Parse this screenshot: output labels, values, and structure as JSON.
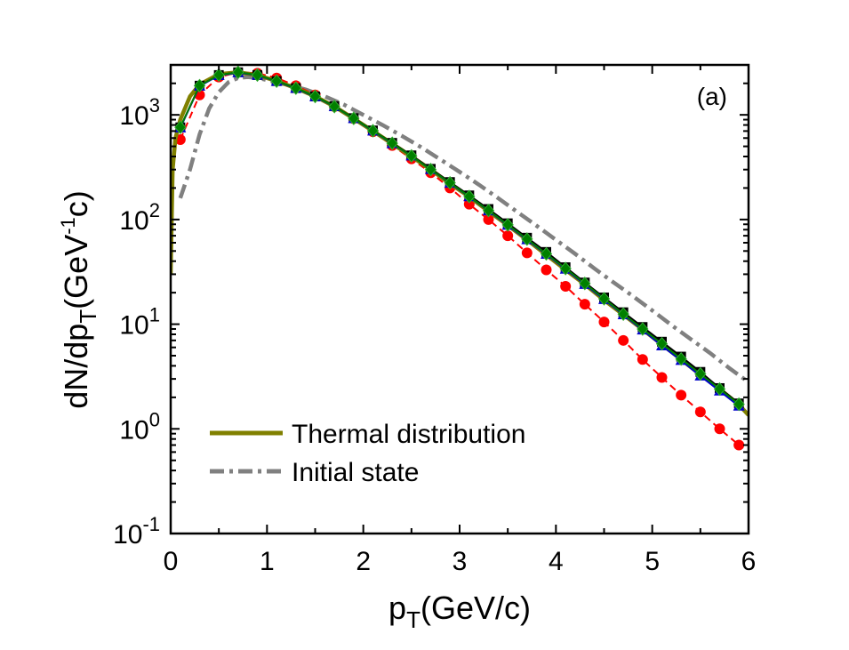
{
  "chart_data": {
    "type": "line",
    "panel_label": "(a)",
    "xlabel_main": "p",
    "xlabel_sub": "T",
    "xlabel_rest": "(GeV/c)",
    "ylabel_a": "dN/dp",
    "ylabel_sub": "T",
    "ylabel_b": "(GeV",
    "ylabel_sup": "-1",
    "ylabel_c": "c)",
    "xlim": [
      0,
      6
    ],
    "ylim": [
      0.1,
      3000
    ],
    "yscale": "log",
    "x_ticks": [
      "0",
      "1",
      "2",
      "3",
      "4",
      "5",
      "6"
    ],
    "y_ticks": [
      {
        "base": "10",
        "exp": "-1",
        "value": 0.1
      },
      {
        "base": "10",
        "exp": "0",
        "value": 1
      },
      {
        "base": "10",
        "exp": "1",
        "value": 10
      },
      {
        "base": "10",
        "exp": "2",
        "value": 100
      },
      {
        "base": "10",
        "exp": "3",
        "value": 1000
      }
    ],
    "legend_position": "bottom-left",
    "series": [
      {
        "name": "Thermal distribution",
        "style": "solid",
        "color": "#808000",
        "x": [
          0.0,
          0.02,
          0.05,
          0.1,
          0.2,
          0.3,
          0.5,
          0.7,
          0.9,
          1.1,
          1.3,
          1.5,
          1.7,
          1.9,
          2.1,
          2.3,
          2.5,
          2.7,
          2.9,
          3.1,
          3.3,
          3.5,
          3.7,
          3.9,
          4.1,
          4.3,
          4.5,
          4.7,
          4.9,
          5.1,
          5.3,
          5.5,
          5.7,
          5.9,
          6.0
        ],
        "y": [
          30,
          300,
          600,
          900,
          1500,
          1950,
          2450,
          2550,
          2400,
          2100,
          1800,
          1500,
          1200,
          920,
          700,
          530,
          400,
          300,
          220,
          165,
          120,
          88,
          64,
          46,
          33,
          24,
          17,
          12.3,
          8.9,
          6.4,
          4.6,
          3.3,
          2.4,
          1.7,
          1.35
        ]
      },
      {
        "name": "Initial state",
        "style": "dashdot",
        "color": "#808080",
        "x": [
          0.1,
          0.2,
          0.3,
          0.4,
          0.5,
          0.6,
          0.7,
          0.8,
          0.9,
          1.0,
          1.2,
          1.4,
          1.6,
          1.8,
          2.0,
          2.2,
          2.4,
          2.6,
          2.8,
          3.0,
          3.2,
          3.4,
          3.6,
          3.8,
          4.0,
          4.2,
          4.4,
          4.6,
          4.8,
          5.0,
          5.2,
          5.4,
          5.6,
          5.8,
          6.0
        ],
        "y": [
          160,
          300,
          650,
          1150,
          1650,
          2050,
          2250,
          2300,
          2250,
          2150,
          1950,
          1750,
          1500,
          1250,
          1000,
          800,
          630,
          490,
          375,
          285,
          215,
          160,
          118,
          87,
          64,
          47,
          34,
          25,
          18.5,
          13.5,
          9.8,
          7.2,
          5.3,
          3.8,
          2.8
        ]
      },
      {
        "style": "dashed-markers",
        "marker": "circle",
        "color": "#ff0000",
        "x": [
          0.1,
          0.3,
          0.5,
          0.7,
          0.9,
          1.1,
          1.3,
          1.5,
          1.7,
          1.9,
          2.1,
          2.3,
          2.5,
          2.7,
          2.9,
          3.1,
          3.3,
          3.5,
          3.7,
          3.9,
          4.1,
          4.3,
          4.5,
          4.7,
          4.9,
          5.1,
          5.3,
          5.5,
          5.7,
          5.9
        ],
        "y": [
          580,
          1550,
          2300,
          2550,
          2500,
          2250,
          1900,
          1550,
          1200,
          920,
          690,
          510,
          380,
          280,
          200,
          140,
          100,
          70,
          48,
          33,
          23,
          15.5,
          10.5,
          7.0,
          4.6,
          3.1,
          2.1,
          1.45,
          1.0,
          0.7
        ]
      },
      {
        "style": "solid-markers",
        "marker": "square",
        "color": "#000000",
        "x": [
          0.1,
          0.3,
          0.5,
          0.7,
          0.9,
          1.1,
          1.3,
          1.5,
          1.7,
          1.9,
          2.1,
          2.3,
          2.5,
          2.7,
          2.9,
          3.1,
          3.3,
          3.5,
          3.7,
          3.9,
          4.1,
          4.3,
          4.5,
          4.7,
          4.9,
          5.1,
          5.3,
          5.5,
          5.7,
          5.9
        ],
        "y": [
          760,
          1900,
          2400,
          2550,
          2400,
          2100,
          1800,
          1500,
          1210,
          930,
          710,
          540,
          410,
          305,
          228,
          170,
          126,
          92,
          67,
          49,
          35,
          25,
          18,
          13,
          9.4,
          6.8,
          4.9,
          3.5,
          2.45,
          1.75
        ]
      },
      {
        "style": "solid-markers",
        "marker": "triangle",
        "color": "#0000cc",
        "x": [
          0.1,
          0.3,
          0.5,
          0.7,
          0.9,
          1.1,
          1.3,
          1.5,
          1.7,
          1.9,
          2.1,
          2.3,
          2.5,
          2.7,
          2.9,
          3.1,
          3.3,
          3.5,
          3.7,
          3.9,
          4.1,
          4.3,
          4.5,
          4.7,
          4.9,
          5.1,
          5.3,
          5.5,
          5.7,
          5.9
        ],
        "y": [
          750,
          1880,
          2380,
          2530,
          2390,
          2090,
          1790,
          1490,
          1200,
          920,
          700,
          530,
          405,
          300,
          222,
          165,
          121,
          88,
          64,
          46.5,
          33.5,
          24,
          17.2,
          12.3,
          8.8,
          6.2,
          4.5,
          3.2,
          2.3,
          1.65
        ]
      },
      {
        "style": "solid-markers",
        "marker": "diamond",
        "color": "#008000",
        "x": [
          0.1,
          0.3,
          0.5,
          0.7,
          0.9,
          1.1,
          1.3,
          1.5,
          1.7,
          1.9,
          2.1,
          2.3,
          2.5,
          2.7,
          2.9,
          3.1,
          3.3,
          3.5,
          3.7,
          3.9,
          4.1,
          4.3,
          4.5,
          4.7,
          4.9,
          5.1,
          5.3,
          5.5,
          5.7,
          5.9
        ],
        "y": [
          760,
          1900,
          2400,
          2550,
          2400,
          2100,
          1800,
          1500,
          1200,
          925,
          705,
          535,
          405,
          300,
          224,
          166,
          122,
          89,
          65,
          47,
          34,
          24.5,
          17.5,
          12.5,
          9.0,
          6.5,
          4.65,
          3.35,
          2.4,
          1.72
        ]
      }
    ]
  }
}
